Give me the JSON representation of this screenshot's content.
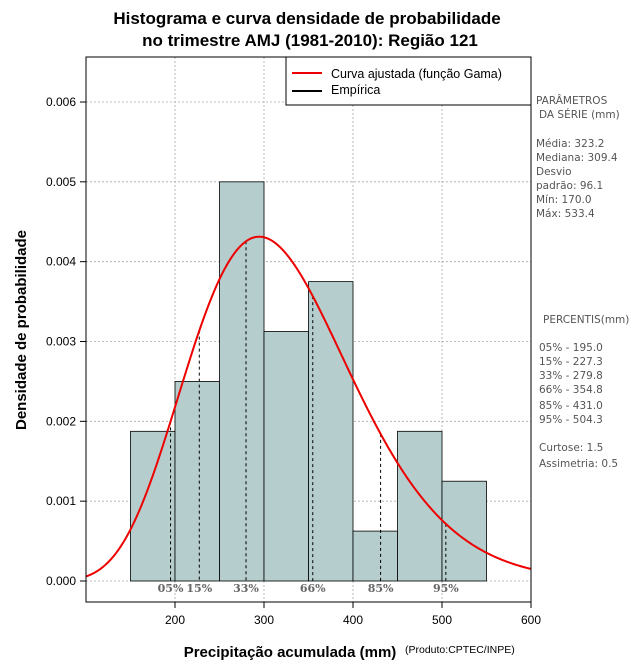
{
  "chart_data": {
    "type": "bar",
    "title": "Histograma e curva densidade de probabilidade",
    "subtitle": "no trimestre AMJ (1981-2010): Região 121",
    "xlabel": "Precipitação acumulada (mm)",
    "ylabel": "Densidade de probabilidade",
    "credit": "(Produto:CPTEC/INPE)",
    "xlim": [
      100,
      600
    ],
    "ylim": [
      0,
      0.0066
    ],
    "x_ticks": [
      200,
      300,
      400,
      500,
      600
    ],
    "y_ticks": [
      0,
      0.001,
      0.002,
      0.003,
      0.004,
      0.005,
      0.006
    ],
    "y_tick_labels": [
      "0.000",
      "0.001",
      "0.002",
      "0.003",
      "0.004",
      "0.005",
      "0.006"
    ],
    "grid": true,
    "bins": [
      {
        "x0": 150,
        "x1": 200,
        "value": 0.001875
      },
      {
        "x0": 200,
        "x1": 250,
        "value": 0.0025
      },
      {
        "x0": 250,
        "x1": 300,
        "value": 0.005
      },
      {
        "x0": 300,
        "x1": 350,
        "value": 0.003125
      },
      {
        "x0": 350,
        "x1": 400,
        "value": 0.00375
      },
      {
        "x0": 400,
        "x1": 450,
        "value": 0.000625
      },
      {
        "x0": 450,
        "x1": 500,
        "value": 0.001875
      },
      {
        "x0": 500,
        "x1": 550,
        "value": 0.00125
      }
    ],
    "gamma_fit": {
      "mean": 323.2,
      "sd": 96.1
    },
    "percentile_markers": [
      {
        "label": "05%",
        "value": 195.0
      },
      {
        "label": "15%",
        "value": 227.3
      },
      {
        "label": "33%",
        "value": 279.8
      },
      {
        "label": "66%",
        "value": 354.8
      },
      {
        "label": "85%",
        "value": 431.0
      },
      {
        "label": "95%",
        "value": 504.3
      }
    ],
    "legend": {
      "position": "top-right",
      "entries": [
        {
          "label": "Curva ajustada (função Gama)",
          "color": "#ee0000"
        },
        {
          "label": "Empírica",
          "color": "#000000"
        }
      ]
    },
    "colors": {
      "bar_fill": "#b5cdcd",
      "curve": "#ee0000",
      "grid": "#aaaaaa",
      "side_text": "#555555"
    }
  },
  "side_panel": {
    "params_title_1": "PARÂMETROS",
    "params_title_2": "DA SÉRIE (mm)",
    "media": "Média:  323.2",
    "mediana": "Mediana:  309.4",
    "desvio": "Desvio",
    "padrao": "padrão:  96.1",
    "min": "Mín:  170.0",
    "max": "Máx:  533.4",
    "percentis_title": "PERCENTIS(mm)",
    "p05": "05% -   195.0",
    "p15": "15% -   227.3",
    "p33": "33% -   279.8",
    "p66": "66% -   354.8",
    "p85": "85% -   431.0",
    "p95": "95% -   504.3",
    "curtose": "Curtose:  1.5",
    "assimetria": "Assimetria:  0.5"
  }
}
